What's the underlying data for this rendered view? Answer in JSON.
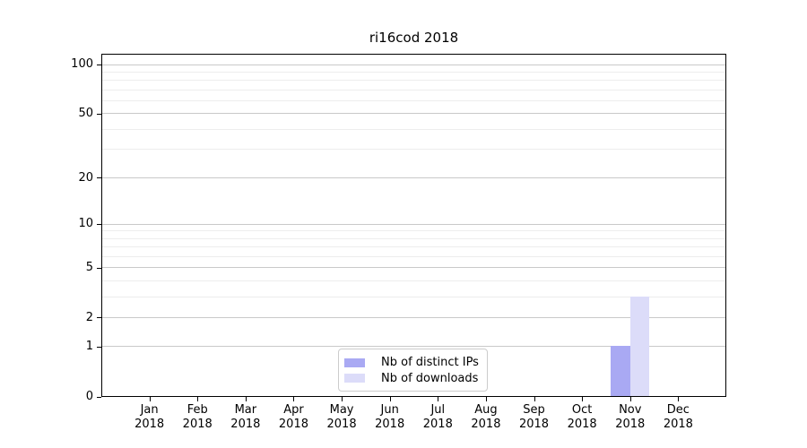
{
  "chart_data": {
    "type": "bar",
    "title": "ri16cod 2018",
    "categories": [
      "Jan",
      "Feb",
      "Mar",
      "Apr",
      "May",
      "Jun",
      "Jul",
      "Aug",
      "Sep",
      "Oct",
      "Nov",
      "Dec"
    ],
    "x_tick_second_line": "2018",
    "series": [
      {
        "name": "Nb of distinct IPs",
        "color": "#a9a9f3",
        "values": [
          0,
          0,
          0,
          0,
          0,
          0,
          0,
          0,
          0,
          0,
          1,
          0
        ]
      },
      {
        "name": "Nb of downloads",
        "color": "#dcdcf9",
        "values": [
          0,
          0,
          0,
          0,
          0,
          0,
          0,
          0,
          0,
          0,
          3,
          0
        ]
      }
    ],
    "y_axis": {
      "scale": "log1p",
      "tick_values": [
        100,
        50,
        20,
        10,
        5,
        2,
        1,
        0
      ],
      "minor_gridline_values": [
        3,
        4,
        6,
        7,
        8,
        9,
        30,
        40,
        60,
        70,
        80,
        90
      ],
      "ylim": [
        0,
        117
      ]
    },
    "legend": {
      "position": "lower center"
    },
    "grid": true,
    "colors": {
      "distinct_ips_bar": "#a9a9f3",
      "downloads_bar": "#dcdcf9",
      "major_gridline": "#c9c9c9",
      "minor_gridline": "#ededed",
      "axis_spine": "#000000",
      "legend_border": "#cccccc",
      "background": "#ffffff"
    }
  }
}
